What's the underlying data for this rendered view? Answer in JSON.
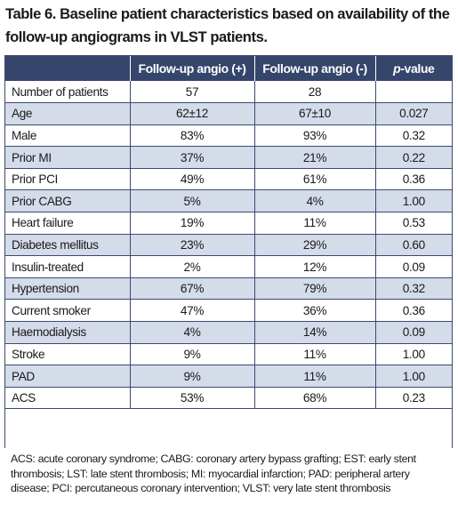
{
  "title": "Table 6. Baseline patient characteristics based on availability of the follow-up angiograms in VLST patients.",
  "table": {
    "headers": [
      "",
      "Follow-up angio (+)",
      "Follow-up angio (-)",
      "p-value"
    ],
    "header_pvalue": {
      "p": "p",
      "rest": "-value"
    },
    "rows": [
      {
        "label": "Number of patients",
        "pos": "57",
        "neg": "28",
        "p": ""
      },
      {
        "label": "Age",
        "pos": "62±12",
        "neg": "67±10",
        "p": "0.027"
      },
      {
        "label": "Male",
        "pos": "83%",
        "neg": "93%",
        "p": "0.32"
      },
      {
        "label": "Prior MI",
        "pos": "37%",
        "neg": "21%",
        "p": "0.22"
      },
      {
        "label": "Prior PCI",
        "pos": "49%",
        "neg": "61%",
        "p": "0.36"
      },
      {
        "label": "Prior CABG",
        "pos": "5%",
        "neg": "4%",
        "p": "1.00"
      },
      {
        "label": "Heart failure",
        "pos": "19%",
        "neg": "11%",
        "p": "0.53"
      },
      {
        "label": "Diabetes mellitus",
        "pos": "23%",
        "neg": "29%",
        "p": "0.60"
      },
      {
        "label": "Insulin-treated",
        "pos": "2%",
        "neg": "12%",
        "p": "0.09"
      },
      {
        "label": "Hypertension",
        "pos": "67%",
        "neg": "79%",
        "p": "0.32"
      },
      {
        "label": "Current smoker",
        "pos": "47%",
        "neg": "36%",
        "p": "0.36"
      },
      {
        "label": "Haemodialysis",
        "pos": "4%",
        "neg": "14%",
        "p": "0.09"
      },
      {
        "label": "Stroke",
        "pos": "9%",
        "neg": "11%",
        "p": "1.00"
      },
      {
        "label": "PAD",
        "pos": "9%",
        "neg": "11%",
        "p": "1.00"
      },
      {
        "label": "ACS",
        "pos": "53%",
        "neg": "68%",
        "p": "0.23"
      }
    ]
  },
  "footnote": "ACS: acute coronary syndrome; CABG: coronary artery bypass grafting; EST: early stent thrombosis; LST: late stent thrombosis; MI: myocardial infarction; PAD: peripheral artery disease; PCI: percutaneous coronary intervention; VLST: very late stent thrombosis",
  "colors": {
    "header_bg": "#35456b",
    "shaded_row": "#d4dbe9",
    "border": "#3c4a6d"
  }
}
